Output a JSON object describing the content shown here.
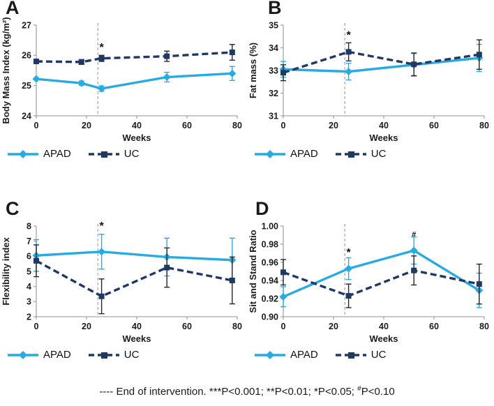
{
  "panels": [
    {
      "letter": "A"
    },
    {
      "letter": "B"
    },
    {
      "letter": "C"
    },
    {
      "letter": "D"
    }
  ],
  "legend": {
    "apad_label": "APAD",
    "uc_label": "UC"
  },
  "caption": {
    "part1": "---- End of intervention. ***P<0.001; **P<0.01; *P<0.05; ",
    "sup": "#",
    "part2": "P<0.10"
  },
  "colors": {
    "apad": "#29abe2",
    "uc": "#1f3864",
    "uc_error": "#262626",
    "axis": "#a6a6a6",
    "intervention_line": "#9e9e9e",
    "text": "#1a1a1a"
  },
  "chart_data": [
    {
      "panel": "A",
      "type": "line",
      "xlabel": "Weeks",
      "ylabel": "Body Mass Index (kg/m²)",
      "xlim": [
        0,
        80
      ],
      "xticks": [
        0,
        20,
        40,
        60,
        80
      ],
      "ylim": [
        24,
        27
      ],
      "yticks": [
        24,
        25,
        26,
        27
      ],
      "ydecimals": 0,
      "intervention_line_x": 24.5,
      "annotations": [
        {
          "text": "*",
          "x": 26,
          "y": 26.15
        }
      ],
      "series": [
        {
          "name": "APAD",
          "x": [
            0,
            18,
            26,
            52,
            78
          ],
          "y": [
            25.22,
            25.08,
            24.9,
            25.28,
            25.4
          ],
          "err": [
            0,
            0.07,
            0.09,
            0.16,
            0.23
          ]
        },
        {
          "name": "UC",
          "x": [
            0,
            18,
            26,
            52,
            78
          ],
          "y": [
            25.8,
            25.78,
            25.9,
            25.97,
            26.1
          ],
          "err": [
            0,
            0.08,
            0.1,
            0.17,
            0.26
          ]
        }
      ]
    },
    {
      "panel": "B",
      "type": "line",
      "xlabel": "Weeks",
      "ylabel": "Fat mass (%)",
      "xlim": [
        0,
        80
      ],
      "xticks": [
        0,
        20,
        40,
        60,
        80
      ],
      "ylim": [
        31,
        35
      ],
      "yticks": [
        31,
        32,
        33,
        34,
        35
      ],
      "ydecimals": 0,
      "intervention_line_x": 24.5,
      "annotations": [
        {
          "text": "*",
          "x": 26,
          "y": 34.4
        }
      ],
      "series": [
        {
          "name": "APAD",
          "x": [
            0,
            26,
            52,
            78
          ],
          "y": [
            33.05,
            32.95,
            33.25,
            33.55
          ],
          "err": [
            0.35,
            0.37,
            0.5,
            0.6
          ]
        },
        {
          "name": "UC",
          "x": [
            0,
            26,
            52,
            78
          ],
          "y": [
            32.9,
            33.82,
            33.27,
            33.7
          ],
          "err": [
            0.35,
            0.4,
            0.5,
            0.65
          ]
        }
      ]
    },
    {
      "panel": "C",
      "type": "line",
      "xlabel": "Weeks",
      "ylabel": "Flexibility index",
      "xlim": [
        0,
        80
      ],
      "xticks": [
        0,
        20,
        40,
        60,
        80
      ],
      "ylim": [
        2,
        8
      ],
      "yticks": [
        2,
        3,
        4,
        5,
        6,
        7,
        8
      ],
      "ydecimals": 0,
      "intervention_line_x": 24.5,
      "annotations": [
        {
          "text": "*",
          "x": 26,
          "y": 7.78
        }
      ],
      "series": [
        {
          "name": "APAD",
          "x": [
            0,
            26,
            52,
            78
          ],
          "y": [
            6.05,
            6.3,
            5.95,
            5.75
          ],
          "err": [
            1.05,
            1.15,
            1.25,
            1.45
          ]
        },
        {
          "name": "UC",
          "x": [
            0,
            26,
            52,
            78
          ],
          "y": [
            5.7,
            3.35,
            5.25,
            4.4
          ],
          "err": [
            1.05,
            1.15,
            1.3,
            1.55
          ]
        }
      ]
    },
    {
      "panel": "D",
      "type": "line",
      "xlabel": "Weeks",
      "ylabel": "Sit and Stand Ratio",
      "xlim": [
        0,
        80
      ],
      "xticks": [
        0,
        20,
        40,
        60,
        80
      ],
      "ylim": [
        0.9,
        1.0
      ],
      "yticks": [
        0.9,
        0.92,
        0.94,
        0.96,
        0.98,
        1.0
      ],
      "ydecimals": 2,
      "intervention_line_x": 24.5,
      "annotations": [
        {
          "text": "*",
          "x": 26,
          "y": 0.967
        },
        {
          "text": "#",
          "x": 52,
          "y": 0.988
        }
      ],
      "series": [
        {
          "name": "APAD",
          "x": [
            0,
            26,
            52,
            78
          ],
          "y": [
            0.922,
            0.953,
            0.973,
            0.929
          ],
          "err": [
            0.011,
            0.012,
            0.015,
            0.019
          ]
        },
        {
          "name": "UC",
          "x": [
            0,
            26,
            52,
            78
          ],
          "y": [
            0.949,
            0.923,
            0.951,
            0.936
          ],
          "err": [
            0.014,
            0.013,
            0.016,
            0.022
          ]
        }
      ]
    }
  ]
}
